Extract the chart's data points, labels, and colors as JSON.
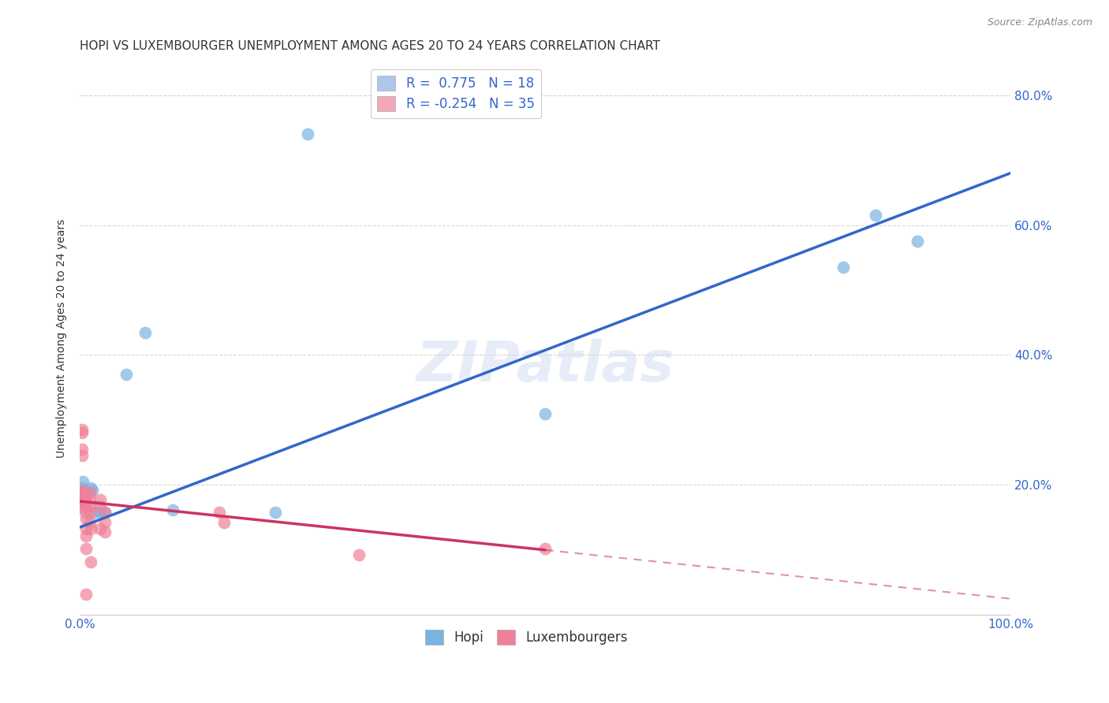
{
  "title": "HOPI VS LUXEMBOURGER UNEMPLOYMENT AMONG AGES 20 TO 24 YEARS CORRELATION CHART",
  "source": "Source: ZipAtlas.com",
  "ylabel": "Unemployment Among Ages 20 to 24 years",
  "xlim": [
    0.0,
    1.0
  ],
  "ylim": [
    0.0,
    0.85
  ],
  "xticks": [
    0.0,
    0.125,
    0.25,
    0.375,
    0.5,
    0.625,
    0.75,
    0.875,
    1.0
  ],
  "xticklabels_map": {
    "0.0": "0.0%",
    "1.0": "100.0%"
  },
  "ytick_positions": [
    0.0,
    0.2,
    0.4,
    0.6,
    0.8
  ],
  "yticklabels_map": {
    "0.2": "20.0%",
    "0.4": "40.0%",
    "0.6": "60.0%",
    "0.8": "80.0%"
  },
  "legend_entries": [
    {
      "label": "R =  0.775   N = 18",
      "facecolor": "#aec6e8",
      "edgecolor": "#aaaaaa"
    },
    {
      "label": "R = -0.254   N = 35",
      "facecolor": "#f4a7b9",
      "edgecolor": "#aaaaaa"
    }
  ],
  "hopi_color": "#7ab3e0",
  "lux_color": "#f08098",
  "hopi_line_color": "#3366cc",
  "lux_line_color": "#cc3366",
  "watermark": "ZIPatlas",
  "hopi_points": [
    [
      0.002,
      0.195
    ],
    [
      0.003,
      0.205
    ],
    [
      0.004,
      0.192
    ],
    [
      0.003,
      0.165
    ],
    [
      0.012,
      0.195
    ],
    [
      0.013,
      0.192
    ],
    [
      0.016,
      0.158
    ],
    [
      0.022,
      0.158
    ],
    [
      0.027,
      0.158
    ],
    [
      0.1,
      0.162
    ],
    [
      0.21,
      0.158
    ],
    [
      0.07,
      0.435
    ],
    [
      0.05,
      0.37
    ],
    [
      0.245,
      0.74
    ],
    [
      0.5,
      0.31
    ],
    [
      0.82,
      0.535
    ],
    [
      0.855,
      0.615
    ],
    [
      0.9,
      0.575
    ]
  ],
  "lux_points": [
    [
      0.002,
      0.28
    ],
    [
      0.002,
      0.255
    ],
    [
      0.002,
      0.192
    ],
    [
      0.003,
      0.188
    ],
    [
      0.003,
      0.178
    ],
    [
      0.003,
      0.172
    ],
    [
      0.006,
      0.183
    ],
    [
      0.006,
      0.178
    ],
    [
      0.006,
      0.172
    ],
    [
      0.006,
      0.168
    ],
    [
      0.006,
      0.158
    ],
    [
      0.007,
      0.148
    ],
    [
      0.007,
      0.133
    ],
    [
      0.007,
      0.122
    ],
    [
      0.007,
      0.102
    ],
    [
      0.007,
      0.032
    ],
    [
      0.011,
      0.188
    ],
    [
      0.011,
      0.178
    ],
    [
      0.011,
      0.168
    ],
    [
      0.011,
      0.158
    ],
    [
      0.011,
      0.142
    ],
    [
      0.012,
      0.133
    ],
    [
      0.012,
      0.082
    ],
    [
      0.022,
      0.178
    ],
    [
      0.022,
      0.168
    ],
    [
      0.022,
      0.133
    ],
    [
      0.027,
      0.158
    ],
    [
      0.027,
      0.142
    ],
    [
      0.027,
      0.128
    ],
    [
      0.15,
      0.158
    ],
    [
      0.155,
      0.142
    ],
    [
      0.5,
      0.102
    ],
    [
      0.002,
      0.285
    ],
    [
      0.002,
      0.245
    ],
    [
      0.3,
      0.092
    ]
  ],
  "hopi_line": {
    "x0": 0.0,
    "y0": 0.135,
    "x1": 1.0,
    "y1": 0.68
  },
  "lux_line_solid": {
    "x0": 0.0,
    "y0": 0.175,
    "x1": 0.5,
    "y1": 0.1
  },
  "lux_line_dash": {
    "x0": 0.5,
    "y0": 0.1,
    "x1": 1.0,
    "y1": 0.025
  },
  "background_color": "#ffffff",
  "grid_color": "#cccccc",
  "title_color": "#333333",
  "axis_label_color": "#333333",
  "tick_color": "#3366cc",
  "title_fontsize": 11,
  "ylabel_fontsize": 10,
  "tick_fontsize": 11,
  "source_fontsize": 9
}
